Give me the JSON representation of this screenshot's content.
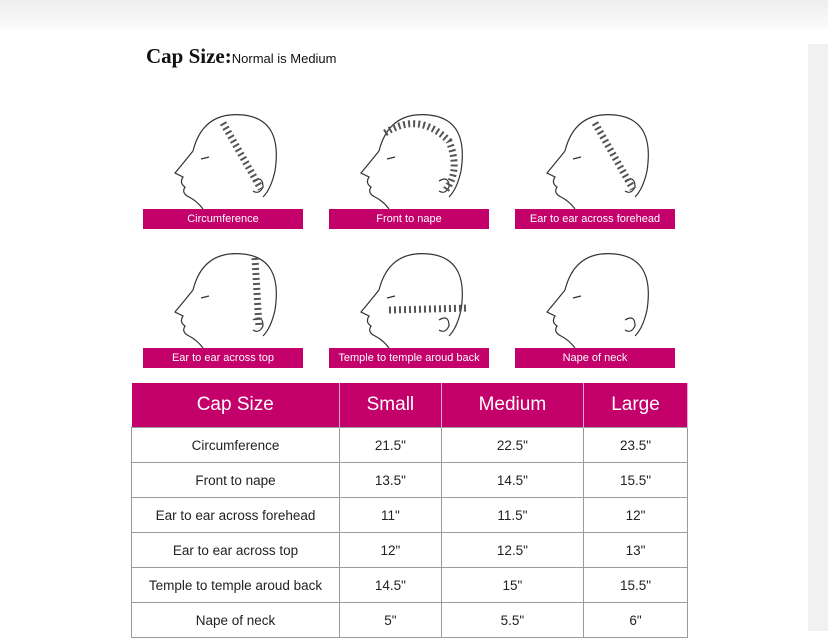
{
  "title": {
    "main": "Cap Size:",
    "sub": "Normal is Medium"
  },
  "figures": [
    {
      "label": "Circumference"
    },
    {
      "label": "Front to nape"
    },
    {
      "label": "Ear to ear across forehead"
    },
    {
      "label": "Ear to ear across top"
    },
    {
      "label": "Temple to temple aroud back"
    },
    {
      "label": "Nape of neck"
    }
  ],
  "accent_color": "#c4006a",
  "table": {
    "headers": [
      "Cap Size",
      "Small",
      "Medium",
      "Large"
    ],
    "rows": [
      [
        "Circumference",
        "21.5\"",
        "22.5\"",
        "23.5\""
      ],
      [
        "Front to nape",
        "13.5\"",
        "14.5\"",
        "15.5\""
      ],
      [
        "Ear to ear across forehead",
        "11\"",
        "11.5\"",
        "12\""
      ],
      [
        "Ear to ear across top",
        "12\"",
        "12.5\"",
        "13\""
      ],
      [
        "Temple to temple aroud back",
        "14.5\"",
        "15\"",
        "15.5\""
      ],
      [
        "Nape of neck",
        "5\"",
        "5.5\"",
        "6\""
      ]
    ]
  }
}
